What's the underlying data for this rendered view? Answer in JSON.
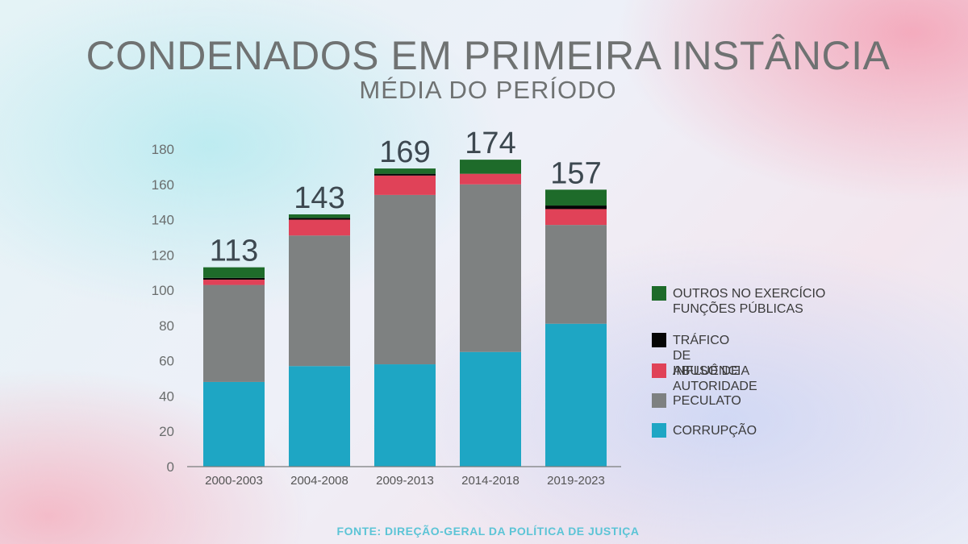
{
  "header": {
    "title": "CONDENADOS EM PRIMEIRA INSTÂNCIA",
    "subtitle": "MÉDIA DO PERÍODO"
  },
  "source": "FONTE: DIREÇÃO-GERAL DA POLÍTICA DE JUSTIÇA",
  "legend": {
    "items": [
      {
        "label": "OUTROS NO EXERCÍCIO FUNÇÕES PÚBLICAS",
        "color": "#1e6b2a"
      },
      {
        "label": "TRÁFICO DE INFLUÊNCIA",
        "color": "#050505"
      },
      {
        "label": "ABUSO DE AUTORIDADE",
        "color": "#e04258"
      },
      {
        "label": "PECULATO",
        "color": "#7e8181"
      },
      {
        "label": "CORRUPÇÃO",
        "color": "#1ea6c4"
      }
    ]
  },
  "chart_data": {
    "type": "bar",
    "stacked": true,
    "categories": [
      "2000-2003",
      "2004-2008",
      "2009-2013",
      "2014-2018",
      "2019-2023"
    ],
    "series": [
      {
        "name": "CORRUPÇÃO",
        "color": "#1ea6c4",
        "values": [
          48,
          57,
          58,
          65,
          81
        ]
      },
      {
        "name": "PECULATO",
        "color": "#7e8181",
        "values": [
          55,
          74,
          96,
          95,
          56
        ]
      },
      {
        "name": "ABUSO DE AUTORIDADE",
        "color": "#e04258",
        "values": [
          3,
          9,
          11,
          6,
          9
        ]
      },
      {
        "name": "TRÁFICO DE INFLUÊNCIA",
        "color": "#050505",
        "values": [
          1,
          1,
          1,
          0,
          2
        ]
      },
      {
        "name": "OUTROS NO EXERCÍCIO FUNÇÕES PÚBLICAS",
        "color": "#1e6b2a",
        "values": [
          6,
          2,
          3,
          8,
          9
        ]
      }
    ],
    "totals": [
      113,
      143,
      169,
      174,
      157
    ],
    "ylim": [
      0,
      180
    ],
    "yticks": [
      0,
      20,
      40,
      60,
      80,
      100,
      120,
      140,
      160,
      180
    ],
    "grid": false,
    "legend_position": "right"
  }
}
